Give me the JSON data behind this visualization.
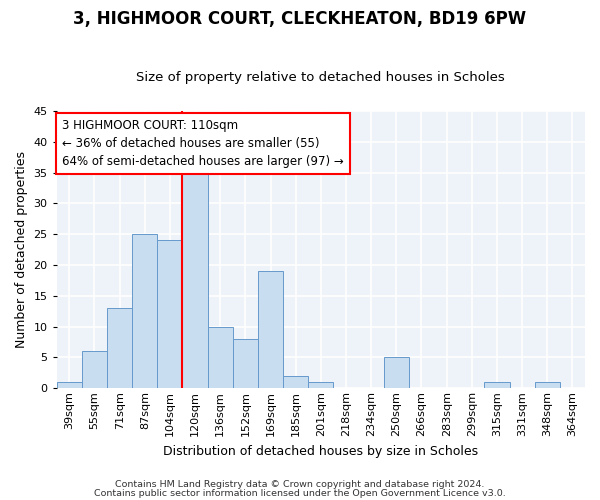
{
  "title": "3, HIGHMOOR COURT, CLECKHEATON, BD19 6PW",
  "subtitle": "Size of property relative to detached houses in Scholes",
  "xlabel": "Distribution of detached houses by size in Scholes",
  "ylabel": "Number of detached properties",
  "categories": [
    "39sqm",
    "55sqm",
    "71sqm",
    "87sqm",
    "104sqm",
    "120sqm",
    "136sqm",
    "152sqm",
    "169sqm",
    "185sqm",
    "201sqm",
    "218sqm",
    "234sqm",
    "250sqm",
    "266sqm",
    "283sqm",
    "299sqm",
    "315sqm",
    "331sqm",
    "348sqm",
    "364sqm"
  ],
  "values": [
    1,
    6,
    13,
    25,
    24,
    35,
    10,
    8,
    19,
    2,
    1,
    0,
    0,
    5,
    0,
    0,
    0,
    1,
    0,
    1,
    0
  ],
  "bar_color": "#c9ddf0",
  "bar_edge_color": "#6699cc",
  "red_line_x": 4.5,
  "ylim": [
    0,
    45
  ],
  "yticks": [
    0,
    5,
    10,
    15,
    20,
    25,
    30,
    35,
    40,
    45
  ],
  "annotation_text": "3 HIGHMOOR COURT: 110sqm\n← 36% of detached houses are smaller (55)\n64% of semi-detached houses are larger (97) →",
  "annotation_box_color": "white",
  "annotation_box_edge": "red",
  "footer1": "Contains HM Land Registry data © Crown copyright and database right 2024.",
  "footer2": "Contains public sector information licensed under the Open Government Licence v3.0.",
  "bg_color": "#eef2f9",
  "grid_color": "#ffffff",
  "title_fontsize": 12,
  "subtitle_fontsize": 9.5,
  "axis_label_fontsize": 9,
  "tick_fontsize": 8,
  "annotation_fontsize": 8.5,
  "footer_fontsize": 6.8
}
